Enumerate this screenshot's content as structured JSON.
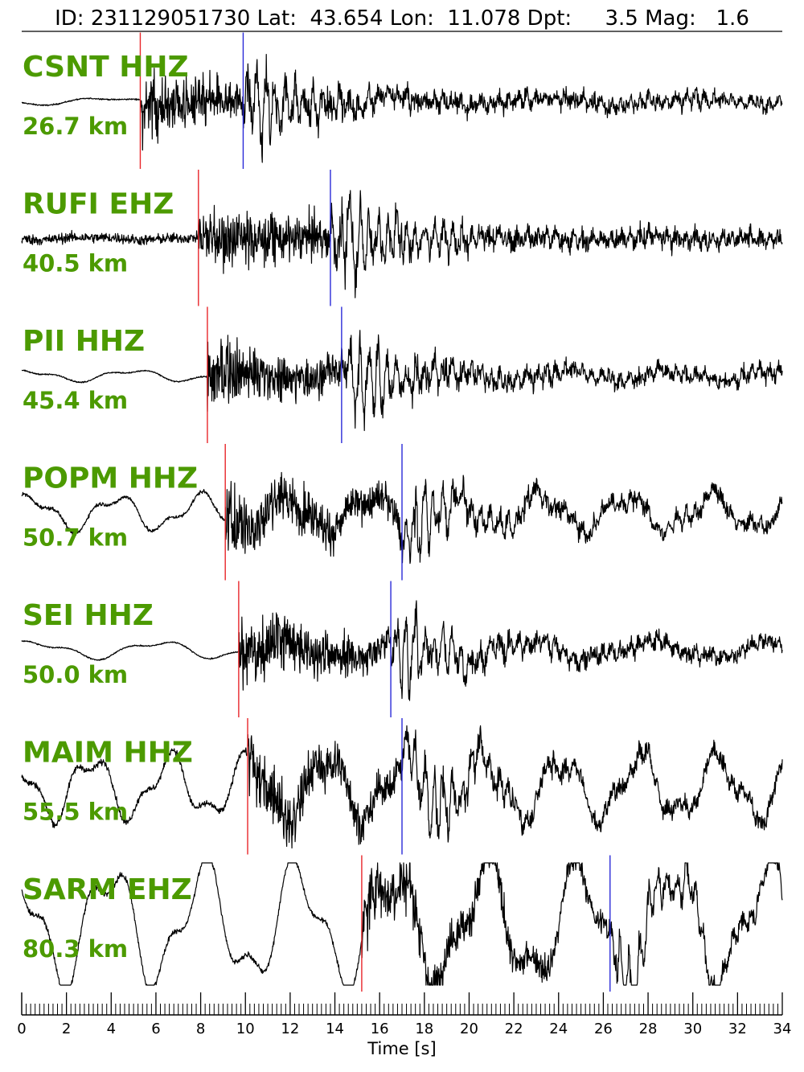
{
  "header": {
    "text": "ID: 231129051730 Lat:  43.654 Lon:  11.078 Dpt:     3.5 Mag:   1.6"
  },
  "chart_data": {
    "type": "line",
    "title": "ID: 231129051730 Lat:  43.654 Lon:  11.078 Dpt:     3.5 Mag:   1.6",
    "event": {
      "id": "231129051730",
      "lat": 43.654,
      "lon": 11.078,
      "depth": 3.5,
      "mag": 1.6
    },
    "xlabel": "Time [s]",
    "xlim": [
      0,
      34
    ],
    "x_major_ticks": [
      0,
      2,
      4,
      6,
      8,
      10,
      12,
      14,
      16,
      18,
      20,
      22,
      24,
      26,
      28,
      30,
      32,
      34
    ],
    "x_minor_step": 0.2,
    "pick_colors": {
      "p": "#e8262a",
      "s": "#2a2ad8"
    },
    "trace_color": "#000000",
    "label_color": "#4c9a00",
    "traces": [
      {
        "station": "CSNT HHZ",
        "distance": "26.7 km",
        "p_pick": 5.3,
        "s_pick": 9.9
      },
      {
        "station": "RUFI EHZ",
        "distance": "40.5 km",
        "p_pick": 7.9,
        "s_pick": 13.8
      },
      {
        "station": "PII HHZ",
        "distance": "45.4 km",
        "p_pick": 8.3,
        "s_pick": 14.3
      },
      {
        "station": "POPM HHZ",
        "distance": "50.7 km",
        "p_pick": 9.1,
        "s_pick": 17.0
      },
      {
        "station": "SEI HHZ",
        "distance": "50.0 km",
        "p_pick": 9.7,
        "s_pick": 16.5
      },
      {
        "station": "MAIM HHZ",
        "distance": "55.5 km",
        "p_pick": 10.1,
        "s_pick": 17.0
      },
      {
        "station": "SARM EHZ",
        "distance": "80.3 km",
        "p_pick": 15.2,
        "s_pick": 26.3
      }
    ]
  }
}
